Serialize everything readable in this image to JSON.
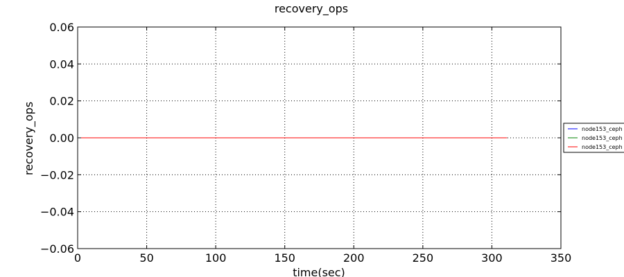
{
  "chart_data": {
    "type": "line",
    "title": "recovery_ops",
    "xlabel": "time(sec)",
    "ylabel": "recovery_ops",
    "xlim": [
      0,
      350
    ],
    "ylim": [
      -0.06,
      0.06
    ],
    "xticks": [
      0,
      50,
      100,
      150,
      200,
      250,
      300,
      350
    ],
    "yticks": [
      0.06,
      0.04,
      0.02,
      0.0,
      -0.02,
      -0.04,
      -0.06
    ],
    "xtick_labels": [
      "0",
      "50",
      "100",
      "150",
      "200",
      "250",
      "300",
      "350"
    ],
    "ytick_labels": [
      "0.06",
      "0.04",
      "0.02",
      "0.00",
      "−0.02",
      "−0.04",
      "−0.06"
    ],
    "grid": true,
    "legend_position": "right",
    "series": [
      {
        "name": "node153_ceph",
        "color": "#0000ff",
        "x": [
          0,
          311
        ],
        "y": [
          0,
          0
        ]
      },
      {
        "name": "node153_ceph",
        "color": "#008000",
        "x": [
          0,
          311
        ],
        "y": [
          0,
          0
        ]
      },
      {
        "name": "node153_ceph",
        "color": "#ff0000",
        "x": [
          0,
          311
        ],
        "y": [
          0,
          0
        ]
      }
    ]
  }
}
